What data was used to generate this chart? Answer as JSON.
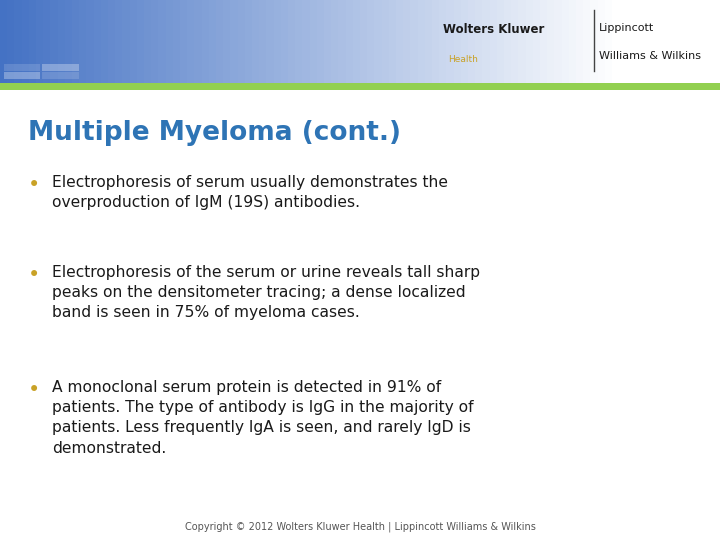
{
  "title": "Multiple Myeloma (cont.)",
  "title_color": "#2E74B5",
  "title_fontsize": 19,
  "bullet_color": "#C9A227",
  "bullet_text_color": "#1A1A1A",
  "bullet_fontsize": 11.2,
  "bullets": [
    "Electrophoresis of serum usually demonstrates the\noverproduction of IgM (19S) antibodies.",
    "Electrophoresis of the serum or urine reveals tall sharp\npeaks on the densitometer tracing; a dense localized\nband is seen in 75% of myeloma cases.",
    "A monoclonal serum protein is detected in 91% of\npatients. The type of antibody is IgG in the majority of\npatients. Less frequently IgA is seen, and rarely IgD is\ndemonstrated."
  ],
  "header_blue": "#4472C4",
  "header_stripe_color": "#92D050",
  "body_bg_color": "#FFFFFF",
  "footer_text": "Copyright © 2012 Wolters Kluwer Health | Lippincott Williams & Wilkins",
  "footer_fontsize": 7,
  "footer_color": "#555555",
  "logo_wk_color": "#1A1A1A",
  "logo_health_color": "#C9A227",
  "logo_lw_color": "#1A1A1A"
}
